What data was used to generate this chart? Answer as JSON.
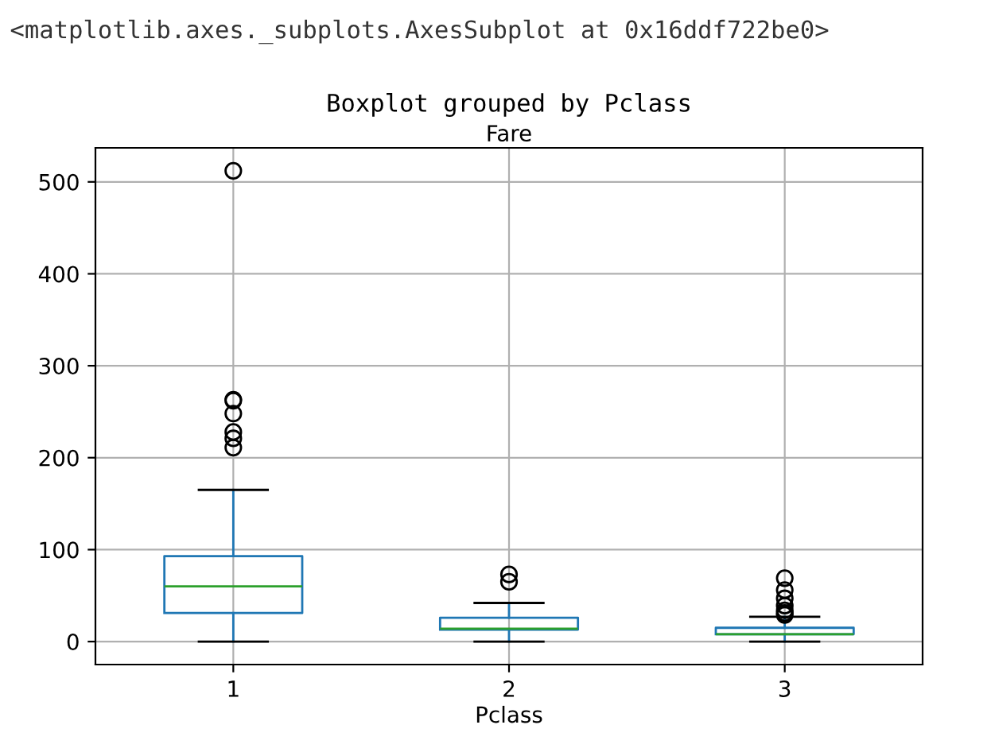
{
  "chart_data": {
    "type": "box",
    "title": "Fare",
    "subtitle": "Boxplot grouped by Pclass",
    "xlabel": "Pclass",
    "annotations": [
      "<matplotlib.axes._subplots.AxesSubplot at 0x16ddf722be0>"
    ],
    "categories": [
      "1",
      "2",
      "3"
    ],
    "boxes": [
      {
        "low": 0,
        "q1": 31,
        "median": 60,
        "q3": 93,
        "high": 165,
        "outliers": [
          211,
          221,
          228,
          248,
          262,
          263,
          512
        ]
      },
      {
        "low": 0,
        "q1": 13,
        "median": 14,
        "q3": 26,
        "high": 42,
        "outliers": [
          65,
          73
        ]
      },
      {
        "low": 0,
        "q1": 8,
        "median": 8,
        "q3": 15,
        "high": 27,
        "outliers": [
          29,
          31,
          34,
          39,
          47,
          56,
          69
        ]
      }
    ],
    "color": "#1f77b4",
    "ylim": [
      -25,
      537
    ],
    "yticks": [
      0,
      100,
      200,
      300,
      400,
      500
    ],
    "grid": true,
    "marker": "circle"
  }
}
